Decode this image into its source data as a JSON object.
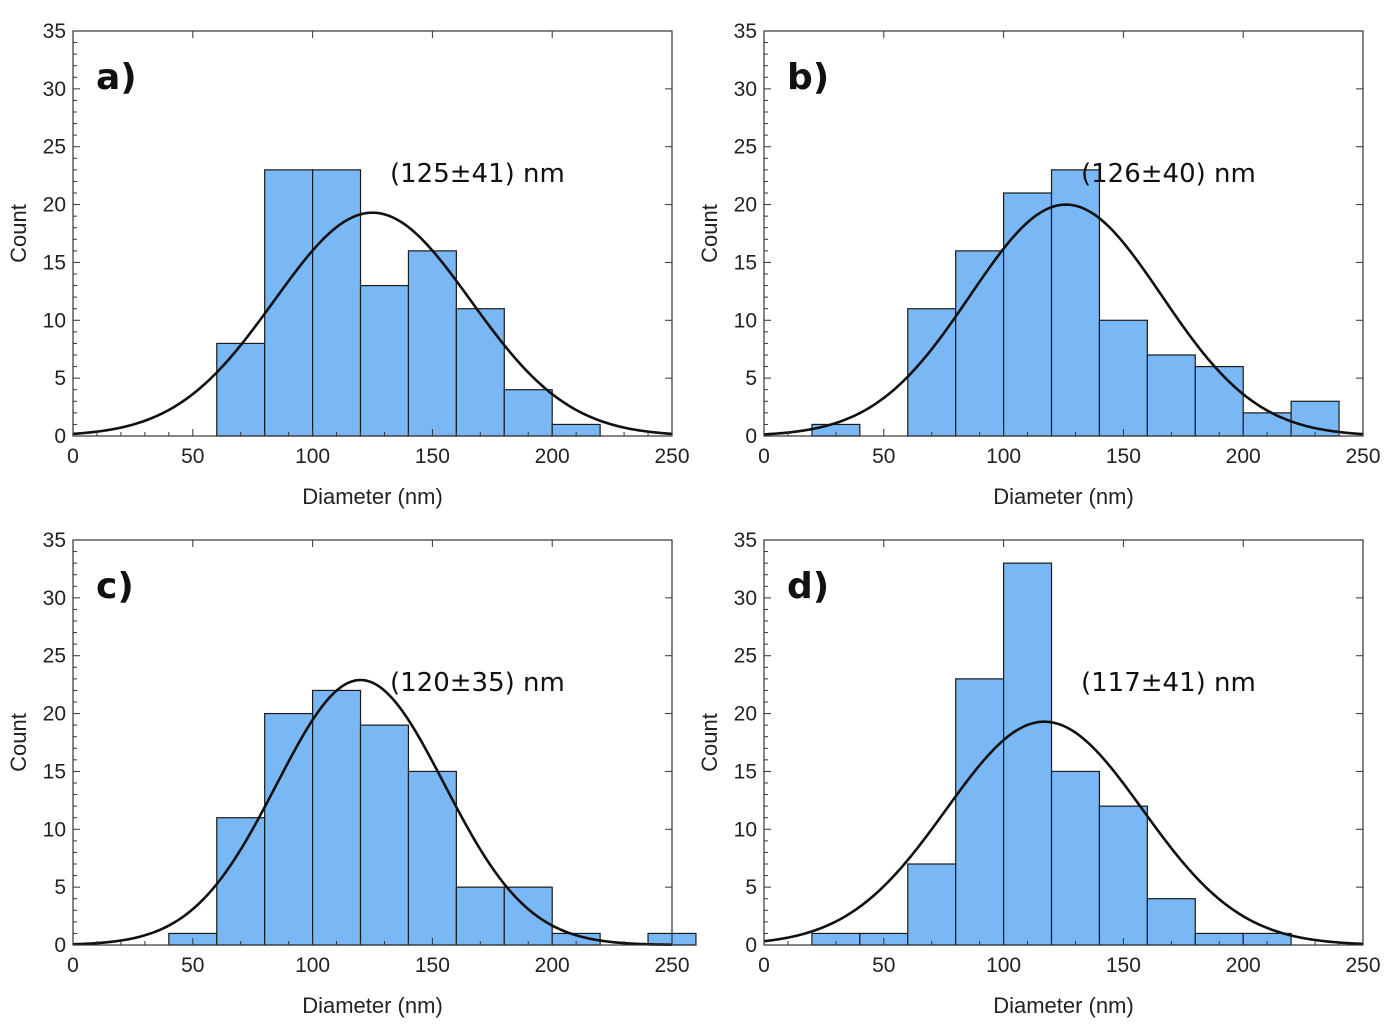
{
  "chart_data": [
    {
      "type": "bar",
      "panel_label": "a)",
      "annotation": "(125±41) nm",
      "xlabel": "Diameter (nm)",
      "ylabel": "Count",
      "xlim": [
        0,
        250
      ],
      "ylim": [
        0,
        35
      ],
      "xticks": [
        "0",
        "50",
        "100",
        "150",
        "200",
        "250"
      ],
      "yticks": [
        "0",
        "5",
        "10",
        "15",
        "20",
        "25",
        "30",
        "35"
      ],
      "bin_width": 20,
      "bins": [
        {
          "x": 60,
          "count": 8
        },
        {
          "x": 80,
          "count": 23
        },
        {
          "x": 100,
          "count": 23
        },
        {
          "x": 120,
          "count": 13
        },
        {
          "x": 140,
          "count": 16
        },
        {
          "x": 160,
          "count": 11
        },
        {
          "x": 180,
          "count": 4
        },
        {
          "x": 200,
          "count": 1
        }
      ],
      "fit": {
        "type": "gaussian",
        "mean": 125,
        "sd": 41,
        "peak": 19.3
      },
      "bar_color": "#7ab8f5"
    },
    {
      "type": "bar",
      "panel_label": "b)",
      "annotation": "(126±40) nm",
      "xlabel": "Diameter (nm)",
      "ylabel": "Count",
      "xlim": [
        0,
        250
      ],
      "ylim": [
        0,
        35
      ],
      "xticks": [
        "0",
        "50",
        "100",
        "150",
        "200",
        "250"
      ],
      "yticks": [
        "0",
        "5",
        "10",
        "15",
        "20",
        "25",
        "30",
        "35"
      ],
      "bin_width": 20,
      "bins": [
        {
          "x": 20,
          "count": 1
        },
        {
          "x": 60,
          "count": 11
        },
        {
          "x": 80,
          "count": 16
        },
        {
          "x": 100,
          "count": 21
        },
        {
          "x": 120,
          "count": 23
        },
        {
          "x": 140,
          "count": 10
        },
        {
          "x": 160,
          "count": 7
        },
        {
          "x": 180,
          "count": 6
        },
        {
          "x": 200,
          "count": 2
        },
        {
          "x": 220,
          "count": 3
        }
      ],
      "fit": {
        "type": "gaussian",
        "mean": 126,
        "sd": 40,
        "peak": 20.0
      },
      "bar_color": "#7ab8f5"
    },
    {
      "type": "bar",
      "panel_label": "c)",
      "annotation": "(120±35) nm",
      "xlabel": "Diameter (nm)",
      "ylabel": "Count",
      "xlim": [
        0,
        250
      ],
      "ylim": [
        0,
        35
      ],
      "xticks": [
        "0",
        "50",
        "100",
        "150",
        "200",
        "250"
      ],
      "yticks": [
        "0",
        "5",
        "10",
        "15",
        "20",
        "25",
        "30",
        "35"
      ],
      "bin_width": 20,
      "bins": [
        {
          "x": 40,
          "count": 1
        },
        {
          "x": 60,
          "count": 11
        },
        {
          "x": 80,
          "count": 20
        },
        {
          "x": 100,
          "count": 22
        },
        {
          "x": 120,
          "count": 19
        },
        {
          "x": 140,
          "count": 15
        },
        {
          "x": 160,
          "count": 5
        },
        {
          "x": 180,
          "count": 5
        },
        {
          "x": 200,
          "count": 1
        },
        {
          "x": 240,
          "count": 1
        }
      ],
      "fit": {
        "type": "gaussian",
        "mean": 120,
        "sd": 35,
        "peak": 22.9
      },
      "bar_color": "#7ab8f5"
    },
    {
      "type": "bar",
      "panel_label": "d)",
      "annotation": "(117±41) nm",
      "xlabel": "Diameter (nm)",
      "ylabel": "Count",
      "xlim": [
        0,
        250
      ],
      "ylim": [
        0,
        35
      ],
      "xticks": [
        "0",
        "50",
        "100",
        "150",
        "200",
        "250"
      ],
      "yticks": [
        "0",
        "5",
        "10",
        "15",
        "20",
        "25",
        "30",
        "35"
      ],
      "bin_width": 20,
      "bins": [
        {
          "x": 20,
          "count": 1
        },
        {
          "x": 40,
          "count": 1
        },
        {
          "x": 60,
          "count": 7
        },
        {
          "x": 80,
          "count": 23
        },
        {
          "x": 100,
          "count": 33
        },
        {
          "x": 120,
          "count": 15
        },
        {
          "x": 140,
          "count": 12
        },
        {
          "x": 160,
          "count": 4
        },
        {
          "x": 180,
          "count": 1
        },
        {
          "x": 200,
          "count": 1
        }
      ],
      "fit": {
        "type": "gaussian",
        "mean": 117,
        "sd": 41,
        "peak": 19.3
      },
      "bar_color": "#7ab8f5"
    }
  ]
}
